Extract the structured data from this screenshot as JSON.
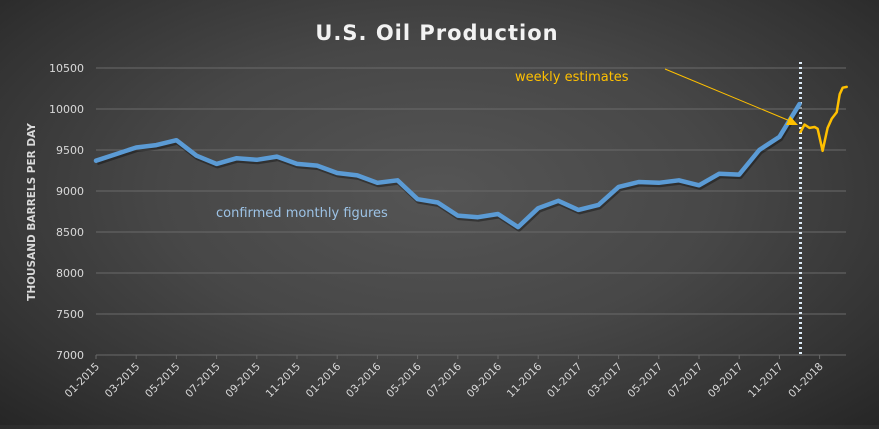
{
  "chart_data": {
    "type": "line",
    "title": "U.S. Oil Production",
    "xlabel": "",
    "ylabel": "THOUSAND BARRELS PER DAY",
    "ylim": [
      7000,
      10500
    ],
    "yticks": [
      7000,
      7500,
      8000,
      8500,
      9000,
      9500,
      10000,
      10500
    ],
    "grid": true,
    "xtick_labels": [
      "01-2015",
      "03-2015",
      "05-2015",
      "07-2015",
      "09-2015",
      "11-2015",
      "01-2016",
      "03-2016",
      "05-2016",
      "07-2016",
      "09-2016",
      "11-2016",
      "01-2017",
      "03-2017",
      "05-2017",
      "07-2017",
      "09-2017",
      "11-2017",
      "01-2018"
    ],
    "x_months_range": [
      0,
      38
    ],
    "series": [
      {
        "name": "confirmed monthly figures",
        "color": "#5b9bd5",
        "x_months": [
          0,
          1,
          2,
          3,
          4,
          5,
          6,
          7,
          8,
          9,
          10,
          11,
          12,
          13,
          14,
          15,
          16,
          17,
          18,
          19,
          20,
          21,
          22,
          23,
          24,
          25,
          26,
          27,
          28,
          29,
          30,
          31,
          32,
          33,
          34,
          35
        ],
        "values": [
          9370,
          9450,
          9530,
          9560,
          9620,
          9430,
          9330,
          9400,
          9380,
          9420,
          9330,
          9310,
          9220,
          9190,
          9100,
          9130,
          8900,
          8860,
          8700,
          8680,
          8720,
          8560,
          8790,
          8880,
          8770,
          8830,
          9050,
          9110,
          9100,
          9130,
          9070,
          9210,
          9200,
          9500,
          9660,
          10060
        ]
      },
      {
        "name": "weekly estimates",
        "color": "#ffc000",
        "x_months": [
          35.05,
          35.25,
          35.5,
          35.75,
          35.9,
          36.15,
          36.4,
          36.6,
          36.85,
          37.0,
          37.15,
          37.35
        ],
        "values": [
          9720,
          9810,
          9770,
          9780,
          9760,
          9490,
          9770,
          9880,
          9960,
          10180,
          10260,
          10270
        ]
      }
    ],
    "divider": {
      "x_month": 35.05,
      "style": "dotted",
      "color": "#ddebf7"
    },
    "annotations": [
      {
        "text": "confirmed monthly figures",
        "color": "#9dc3e6"
      },
      {
        "text": "weekly estimates",
        "color": "#ffc000",
        "arrow": true
      }
    ]
  }
}
